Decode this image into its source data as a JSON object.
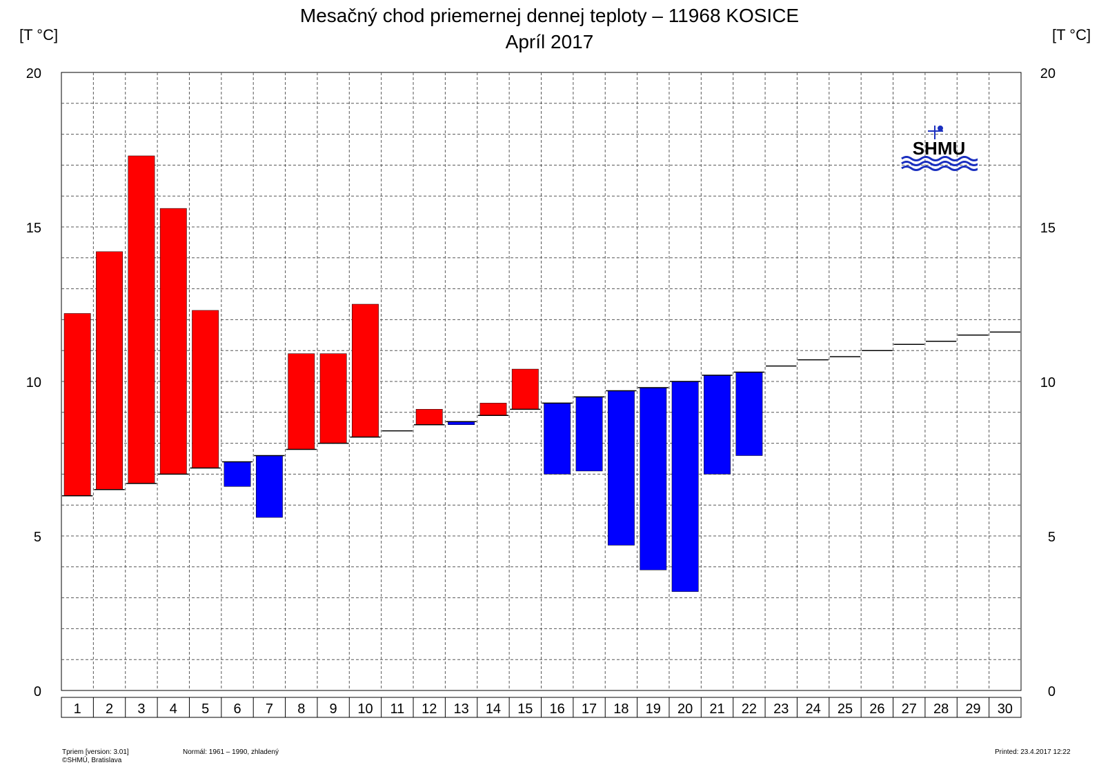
{
  "chart_data": {
    "type": "bar",
    "title": "Mesačný chod priemernej dennej teploty – 11968 KOSICE",
    "subtitle": "Apríl 2017",
    "ylabel_left": "[T °C]",
    "ylabel_right": "[T °C]",
    "ylim": [
      0,
      20
    ],
    "y_ticks": [
      0,
      5,
      10,
      15,
      20
    ],
    "grid": true,
    "categories": [
      "1",
      "2",
      "3",
      "4",
      "5",
      "6",
      "7",
      "8",
      "9",
      "10",
      "11",
      "12",
      "13",
      "14",
      "15",
      "16",
      "17",
      "18",
      "19",
      "20",
      "21",
      "22",
      "23",
      "24",
      "25",
      "26",
      "27",
      "28",
      "29",
      "30"
    ],
    "series": [
      {
        "values": [
          12.2,
          14.2,
          17.3,
          15.6,
          12.3,
          6.6,
          5.6,
          10.9,
          10.9,
          12.5,
          null,
          9.1,
          8.6,
          9.3,
          10.4,
          7.0,
          7.1,
          4.7,
          3.9,
          3.2,
          7.0,
          7.6,
          null,
          null,
          null,
          null,
          null,
          null,
          null,
          null
        ]
      },
      {
        "values": [
          6.3,
          6.5,
          6.7,
          7.0,
          7.2,
          7.4,
          7.6,
          7.8,
          8.0,
          8.2,
          8.4,
          8.6,
          8.7,
          8.9,
          9.1,
          9.3,
          9.5,
          9.7,
          9.8,
          10.0,
          10.2,
          10.3,
          10.5,
          10.7,
          10.8,
          11.0,
          11.2,
          11.3,
          11.5,
          11.6
        ]
      }
    ],
    "colors": {
      "above_normal": "#ff0000",
      "below_normal": "#0000ff",
      "normal_line": "#000000"
    }
  },
  "logo": {
    "text": "SHMU",
    "color": "#1a2fbf"
  },
  "footer": {
    "version": "Tpriem [version: 3.01]",
    "copyright": "©SHMÚ, Bratislava",
    "normal": "Normál: 1961 – 1990, zhladený",
    "printed": "Printed: 23.4.2017  12:22"
  }
}
